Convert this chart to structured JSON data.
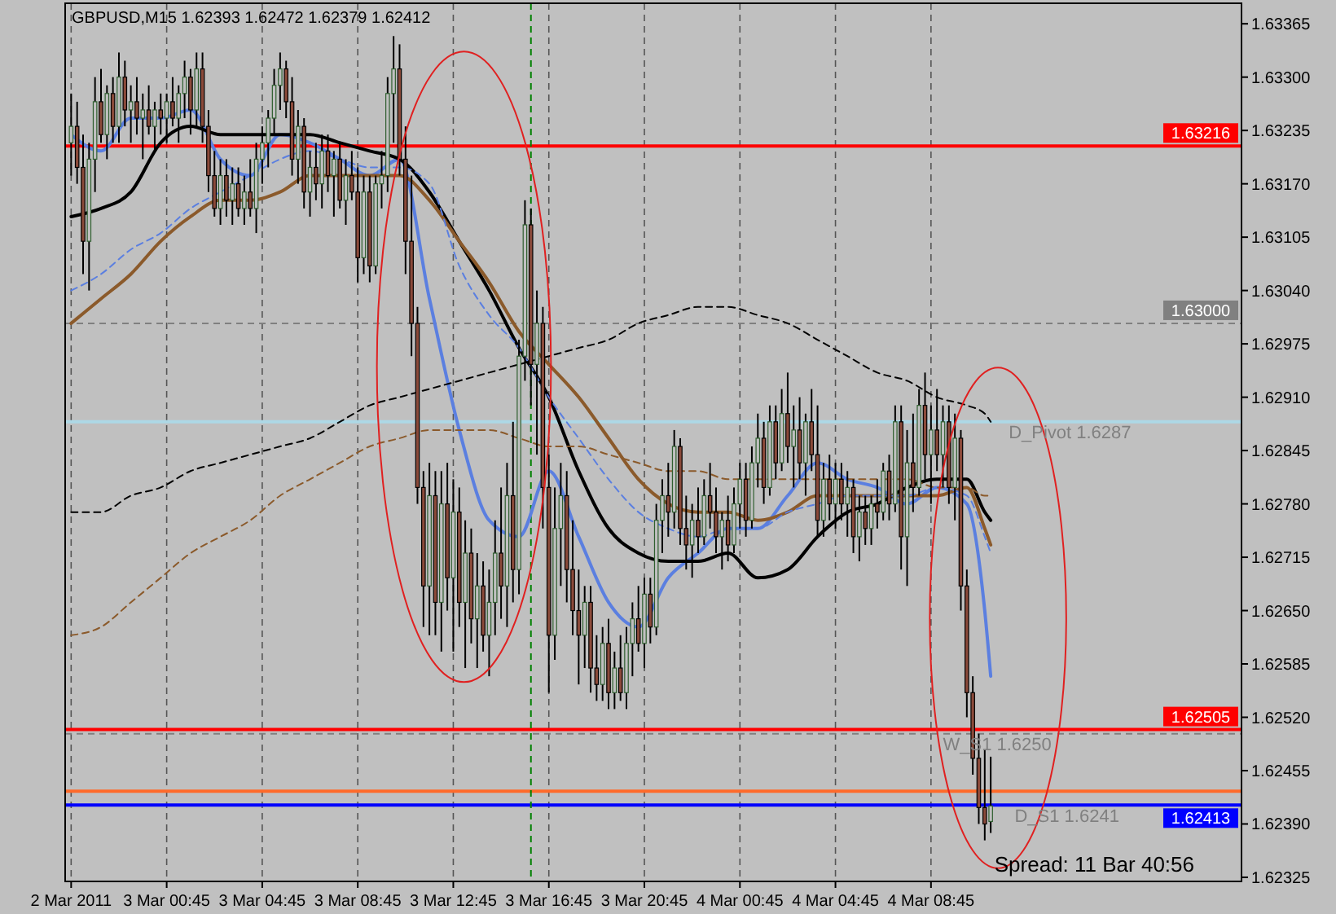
{
  "chart_data": {
    "type": "candlestick",
    "title": "GBPUSD,M15  1.62393 1.62472 1.62379 1.62412",
    "xlim": [
      "2011-03-02T20:30",
      "2011-03-04T21:45"
    ],
    "xticks": [
      {
        "value": "2011-03-02T20:45",
        "label": "2 Mar 2011"
      },
      {
        "value": "2011-03-03T00:45",
        "label": "3 Mar 00:45"
      },
      {
        "value": "2011-03-03T04:45",
        "label": "3 Mar 04:45"
      },
      {
        "value": "2011-03-03T08:45",
        "label": "3 Mar 08:45"
      },
      {
        "value": "2011-03-03T12:45",
        "label": "3 Mar 12:45"
      },
      {
        "value": "2011-03-03T16:45",
        "label": "3 Mar 16:45"
      },
      {
        "value": "2011-03-03T20:45",
        "label": "3 Mar 20:45"
      },
      {
        "value": "2011-03-04T00:45",
        "label": "4 Mar 00:45"
      },
      {
        "value": "2011-03-04T04:45",
        "label": "4 Mar 04:45"
      },
      {
        "value": "2011-03-04T08:45",
        "label": "4 Mar 08:45"
      }
    ],
    "ylim": [
      1.6232,
      1.6339
    ],
    "yticks": [
      {
        "value": 1.62325,
        "label": "1.62325"
      },
      {
        "value": 1.6239,
        "label": "1.62390"
      },
      {
        "value": 1.62455,
        "label": "1.62455"
      },
      {
        "value": 1.6252,
        "label": "1.62520"
      },
      {
        "value": 1.62585,
        "label": "1.62585"
      },
      {
        "value": 1.6265,
        "label": "1.62650"
      },
      {
        "value": 1.62715,
        "label": "1.62715"
      },
      {
        "value": 1.6278,
        "label": "1.62780"
      },
      {
        "value": 1.62845,
        "label": "1.62845"
      },
      {
        "value": 1.6291,
        "label": "1.62910"
      },
      {
        "value": 1.62975,
        "label": "1.62975"
      },
      {
        "value": 1.6304,
        "label": "1.63040"
      },
      {
        "value": 1.63105,
        "label": "1.63105"
      },
      {
        "value": 1.6317,
        "label": "1.63170"
      },
      {
        "value": 1.63235,
        "label": "1.63235"
      },
      {
        "value": 1.633,
        "label": "1.63300"
      },
      {
        "value": 1.63365,
        "label": "1.63365"
      }
    ],
    "grid": "x",
    "x": [
      "2011-03-02T20:45",
      "2011-03-02T21:00",
      "2011-03-02T21:15",
      "2011-03-02T21:30",
      "2011-03-02T21:45",
      "2011-03-02T22:00",
      "2011-03-02T22:15",
      "2011-03-02T22:30",
      "2011-03-02T22:45",
      "2011-03-02T23:00",
      "2011-03-02T23:15",
      "2011-03-02T23:30",
      "2011-03-02T23:45",
      "2011-03-03T00:00",
      "2011-03-03T00:15",
      "2011-03-03T00:30",
      "2011-03-03T00:45",
      "2011-03-03T01:00",
      "2011-03-03T01:15",
      "2011-03-03T01:30",
      "2011-03-03T01:45",
      "2011-03-03T02:00",
      "2011-03-03T02:15",
      "2011-03-03T02:30",
      "2011-03-03T02:45",
      "2011-03-03T03:00",
      "2011-03-03T03:15",
      "2011-03-03T03:30",
      "2011-03-03T03:45",
      "2011-03-03T04:00",
      "2011-03-03T04:15",
      "2011-03-03T04:30",
      "2011-03-03T04:45",
      "2011-03-03T05:00",
      "2011-03-03T05:15",
      "2011-03-03T05:30",
      "2011-03-03T05:45",
      "2011-03-03T06:00",
      "2011-03-03T06:15",
      "2011-03-03T06:30",
      "2011-03-03T06:45",
      "2011-03-03T07:00",
      "2011-03-03T07:15",
      "2011-03-03T07:30",
      "2011-03-03T07:45",
      "2011-03-03T08:00",
      "2011-03-03T08:15",
      "2011-03-03T08:30",
      "2011-03-03T08:45",
      "2011-03-03T09:00",
      "2011-03-03T09:15",
      "2011-03-03T09:30",
      "2011-03-03T09:45",
      "2011-03-03T10:00",
      "2011-03-03T10:15",
      "2011-03-03T10:30",
      "2011-03-03T10:45",
      "2011-03-03T11:00",
      "2011-03-03T11:15",
      "2011-03-03T11:30",
      "2011-03-03T11:45",
      "2011-03-03T12:00",
      "2011-03-03T12:15",
      "2011-03-03T12:30",
      "2011-03-03T12:45",
      "2011-03-03T13:00",
      "2011-03-03T13:15",
      "2011-03-03T13:30",
      "2011-03-03T13:45",
      "2011-03-03T14:00",
      "2011-03-03T14:15",
      "2011-03-03T14:30",
      "2011-03-03T14:45",
      "2011-03-03T15:00",
      "2011-03-03T15:15",
      "2011-03-03T15:30",
      "2011-03-03T15:45",
      "2011-03-03T16:00",
      "2011-03-03T16:15",
      "2011-03-03T16:30",
      "2011-03-03T16:45",
      "2011-03-03T17:00",
      "2011-03-03T17:15",
      "2011-03-03T17:30",
      "2011-03-03T17:45",
      "2011-03-03T18:00",
      "2011-03-03T18:15",
      "2011-03-03T18:30",
      "2011-03-03T18:45",
      "2011-03-03T19:00",
      "2011-03-03T19:15",
      "2011-03-03T19:30",
      "2011-03-03T19:45",
      "2011-03-03T20:00",
      "2011-03-03T20:15",
      "2011-03-03T20:30",
      "2011-03-03T20:45",
      "2011-03-03T21:00",
      "2011-03-03T21:15",
      "2011-03-03T21:30",
      "2011-03-03T21:45",
      "2011-03-03T22:00",
      "2011-03-03T22:15",
      "2011-03-03T22:30",
      "2011-03-03T22:45",
      "2011-03-03T23:00",
      "2011-03-03T23:15",
      "2011-03-03T23:30",
      "2011-03-03T23:45",
      "2011-03-04T00:00",
      "2011-03-04T00:15",
      "2011-03-04T00:30",
      "2011-03-04T00:45",
      "2011-03-04T01:00",
      "2011-03-04T01:15",
      "2011-03-04T01:30",
      "2011-03-04T01:45",
      "2011-03-04T02:00",
      "2011-03-04T02:15",
      "2011-03-04T02:30",
      "2011-03-04T02:45",
      "2011-03-04T03:00",
      "2011-03-04T03:15",
      "2011-03-04T03:30",
      "2011-03-04T03:45",
      "2011-03-04T04:00",
      "2011-03-04T04:15",
      "2011-03-04T04:30",
      "2011-03-04T04:45",
      "2011-03-04T05:00",
      "2011-03-04T05:15",
      "2011-03-04T05:30",
      "2011-03-04T05:45",
      "2011-03-04T06:00",
      "2011-03-04T06:15",
      "2011-03-04T06:30",
      "2011-03-04T06:45",
      "2011-03-04T07:00",
      "2011-03-04T07:15",
      "2011-03-04T07:30",
      "2011-03-04T07:45",
      "2011-03-04T08:00",
      "2011-03-04T08:15",
      "2011-03-04T08:30",
      "2011-03-04T08:45",
      "2011-03-04T09:00",
      "2011-03-04T09:15",
      "2011-03-04T09:30",
      "2011-03-04T09:45",
      "2011-03-04T10:00",
      "2011-03-04T10:15",
      "2011-03-04T10:30",
      "2011-03-04T10:45",
      "2011-03-04T11:00",
      "2011-03-04T11:15"
    ],
    "ohlc": [
      [
        1.6322,
        1.6328,
        1.6318,
        1.6324
      ],
      [
        1.6324,
        1.6327,
        1.6317,
        1.6319
      ],
      [
        1.6319,
        1.6323,
        1.6306,
        1.631
      ],
      [
        1.631,
        1.6322,
        1.6304,
        1.632
      ],
      [
        1.632,
        1.633,
        1.6316,
        1.6327
      ],
      [
        1.6327,
        1.6331,
        1.6322,
        1.6323
      ],
      [
        1.6323,
        1.6329,
        1.632,
        1.6328
      ],
      [
        1.6328,
        1.633,
        1.6322,
        1.6324
      ],
      [
        1.6324,
        1.6333,
        1.6322,
        1.633
      ],
      [
        1.633,
        1.6332,
        1.6324,
        1.6326
      ],
      [
        1.6326,
        1.6329,
        1.6322,
        1.6327
      ],
      [
        1.6327,
        1.633,
        1.6323,
        1.6325
      ],
      [
        1.6325,
        1.6328,
        1.632,
        1.6326
      ],
      [
        1.6326,
        1.6329,
        1.6323,
        1.6324
      ],
      [
        1.6324,
        1.6327,
        1.6321,
        1.6326
      ],
      [
        1.6326,
        1.6328,
        1.6323,
        1.6325
      ],
      [
        1.6325,
        1.6328,
        1.6322,
        1.6327
      ],
      [
        1.6327,
        1.633,
        1.6324,
        1.6325
      ],
      [
        1.6325,
        1.6329,
        1.6322,
        1.6328
      ],
      [
        1.6328,
        1.6332,
        1.6325,
        1.633
      ],
      [
        1.633,
        1.6331,
        1.6323,
        1.6326
      ],
      [
        1.6326,
        1.6333,
        1.6324,
        1.6331
      ],
      [
        1.6331,
        1.6333,
        1.6322,
        1.6324
      ],
      [
        1.6324,
        1.6326,
        1.6316,
        1.6318
      ],
      [
        1.6318,
        1.6321,
        1.6313,
        1.6314
      ],
      [
        1.6314,
        1.632,
        1.6312,
        1.6318
      ],
      [
        1.6318,
        1.632,
        1.6313,
        1.6315
      ],
      [
        1.6315,
        1.6319,
        1.6312,
        1.6317
      ],
      [
        1.6317,
        1.6319,
        1.6313,
        1.6314
      ],
      [
        1.6314,
        1.6318,
        1.6312,
        1.6316
      ],
      [
        1.6316,
        1.632,
        1.6313,
        1.6314
      ],
      [
        1.6314,
        1.6322,
        1.6311,
        1.632
      ],
      [
        1.632,
        1.6324,
        1.6317,
        1.6322
      ],
      [
        1.6322,
        1.6326,
        1.6319,
        1.6325
      ],
      [
        1.6325,
        1.6331,
        1.6323,
        1.6329
      ],
      [
        1.6329,
        1.6333,
        1.6326,
        1.6331
      ],
      [
        1.6331,
        1.6332,
        1.6325,
        1.6327
      ],
      [
        1.6327,
        1.633,
        1.6318,
        1.632
      ],
      [
        1.632,
        1.6326,
        1.6317,
        1.6324
      ],
      [
        1.6324,
        1.6325,
        1.6314,
        1.6316
      ],
      [
        1.6316,
        1.6321,
        1.6313,
        1.6319
      ],
      [
        1.6319,
        1.6322,
        1.6315,
        1.6317
      ],
      [
        1.6317,
        1.6323,
        1.6314,
        1.6321
      ],
      [
        1.6321,
        1.6323,
        1.6316,
        1.6318
      ],
      [
        1.6318,
        1.6321,
        1.6313,
        1.632
      ],
      [
        1.632,
        1.6322,
        1.6314,
        1.6315
      ],
      [
        1.6315,
        1.632,
        1.6312,
        1.6318
      ],
      [
        1.6318,
        1.6321,
        1.6315,
        1.6316
      ],
      [
        1.6316,
        1.6319,
        1.6305,
        1.6308
      ],
      [
        1.6308,
        1.6318,
        1.6306,
        1.6316
      ],
      [
        1.6316,
        1.6318,
        1.6305,
        1.6307
      ],
      [
        1.6307,
        1.6318,
        1.6306,
        1.6317
      ],
      [
        1.6317,
        1.6321,
        1.6314,
        1.6318
      ],
      [
        1.6318,
        1.633,
        1.6316,
        1.6328
      ],
      [
        1.6328,
        1.6335,
        1.6322,
        1.6331
      ],
      [
        1.6331,
        1.6334,
        1.6318,
        1.632
      ],
      [
        1.632,
        1.6324,
        1.6306,
        1.631
      ],
      [
        1.631,
        1.6318,
        1.6296,
        1.63
      ],
      [
        1.63,
        1.6302,
        1.6278,
        1.628
      ],
      [
        1.628,
        1.6282,
        1.6263,
        1.6268
      ],
      [
        1.6268,
        1.6283,
        1.6262,
        1.6279
      ],
      [
        1.6279,
        1.6282,
        1.6262,
        1.6266
      ],
      [
        1.6266,
        1.6282,
        1.626,
        1.6278
      ],
      [
        1.6278,
        1.6283,
        1.6265,
        1.6269
      ],
      [
        1.6269,
        1.6281,
        1.626,
        1.6277
      ],
      [
        1.6277,
        1.628,
        1.6263,
        1.6266
      ],
      [
        1.6266,
        1.6276,
        1.6258,
        1.6272
      ],
      [
        1.6272,
        1.6275,
        1.6261,
        1.6264
      ],
      [
        1.6264,
        1.6272,
        1.6258,
        1.6268
      ],
      [
        1.6268,
        1.6271,
        1.626,
        1.6262
      ],
      [
        1.6262,
        1.627,
        1.6257,
        1.6266
      ],
      [
        1.6266,
        1.6276,
        1.6262,
        1.6272
      ],
      [
        1.6272,
        1.628,
        1.6264,
        1.6268
      ],
      [
        1.6268,
        1.6283,
        1.6263,
        1.6279
      ],
      [
        1.6279,
        1.6288,
        1.6266,
        1.627
      ],
      [
        1.627,
        1.6298,
        1.6267,
        1.6296
      ],
      [
        1.6296,
        1.6315,
        1.6293,
        1.6312
      ],
      [
        1.6312,
        1.6314,
        1.629,
        1.6295
      ],
      [
        1.6295,
        1.6304,
        1.6284,
        1.63
      ],
      [
        1.63,
        1.6302,
        1.6275,
        1.628
      ],
      [
        1.628,
        1.6284,
        1.6255,
        1.6262
      ],
      [
        1.6262,
        1.628,
        1.6259,
        1.6275
      ],
      [
        1.6275,
        1.6283,
        1.6268,
        1.6279
      ],
      [
        1.6279,
        1.6282,
        1.6266,
        1.627
      ],
      [
        1.627,
        1.6276,
        1.6262,
        1.6265
      ],
      [
        1.6265,
        1.627,
        1.6256,
        1.6262
      ],
      [
        1.6262,
        1.6268,
        1.6258,
        1.6266
      ],
      [
        1.6266,
        1.6268,
        1.6255,
        1.6258
      ],
      [
        1.6258,
        1.6262,
        1.6254,
        1.6256
      ],
      [
        1.6256,
        1.6263,
        1.6254,
        1.6261
      ],
      [
        1.6261,
        1.6264,
        1.6253,
        1.6255
      ],
      [
        1.6255,
        1.626,
        1.6253,
        1.6258
      ],
      [
        1.6258,
        1.6262,
        1.6254,
        1.6255
      ],
      [
        1.6255,
        1.6263,
        1.6253,
        1.6261
      ],
      [
        1.6261,
        1.6266,
        1.6257,
        1.6264
      ],
      [
        1.6264,
        1.6268,
        1.626,
        1.6261
      ],
      [
        1.6261,
        1.6269,
        1.6258,
        1.6267
      ],
      [
        1.6267,
        1.6269,
        1.6261,
        1.6263
      ],
      [
        1.6263,
        1.6278,
        1.6262,
        1.6276
      ],
      [
        1.6276,
        1.6281,
        1.6272,
        1.6279
      ],
      [
        1.6279,
        1.6283,
        1.6274,
        1.6277
      ],
      [
        1.6277,
        1.6287,
        1.6275,
        1.6285
      ],
      [
        1.6285,
        1.6286,
        1.6273,
        1.6275
      ],
      [
        1.6275,
        1.6279,
        1.627,
        1.6273
      ],
      [
        1.6273,
        1.6278,
        1.6269,
        1.6276
      ],
      [
        1.6276,
        1.628,
        1.6272,
        1.6274
      ],
      [
        1.6274,
        1.6281,
        1.6273,
        1.6279
      ],
      [
        1.6279,
        1.6283,
        1.6275,
        1.6277
      ],
      [
        1.6277,
        1.628,
        1.6272,
        1.6274
      ],
      [
        1.6274,
        1.6277,
        1.627,
        1.6276
      ],
      [
        1.6276,
        1.6279,
        1.6271,
        1.6273
      ],
      [
        1.6273,
        1.628,
        1.6272,
        1.6278
      ],
      [
        1.6278,
        1.6283,
        1.6275,
        1.6281
      ],
      [
        1.6281,
        1.6283,
        1.6274,
        1.6276
      ],
      [
        1.6276,
        1.6285,
        1.6275,
        1.6283
      ],
      [
        1.6283,
        1.6289,
        1.628,
        1.6286
      ],
      [
        1.6286,
        1.6288,
        1.6278,
        1.628
      ],
      [
        1.628,
        1.629,
        1.6279,
        1.6288
      ],
      [
        1.6288,
        1.629,
        1.6281,
        1.6283
      ],
      [
        1.6283,
        1.6292,
        1.6282,
        1.6289
      ],
      [
        1.6289,
        1.6294,
        1.6283,
        1.6285
      ],
      [
        1.6285,
        1.629,
        1.628,
        1.6287
      ],
      [
        1.6287,
        1.6291,
        1.6281,
        1.6283
      ],
      [
        1.6283,
        1.6289,
        1.6279,
        1.6288
      ],
      [
        1.6288,
        1.6292,
        1.6282,
        1.6284
      ],
      [
        1.6284,
        1.629,
        1.6274,
        1.6276
      ],
      [
        1.6276,
        1.6283,
        1.6274,
        1.6281
      ],
      [
        1.6281,
        1.6284,
        1.6276,
        1.6278
      ],
      [
        1.6278,
        1.6283,
        1.6275,
        1.6281
      ],
      [
        1.6281,
        1.6283,
        1.6276,
        1.6278
      ],
      [
        1.6278,
        1.6282,
        1.6274,
        1.628
      ],
      [
        1.628,
        1.6281,
        1.6272,
        1.6274
      ],
      [
        1.6274,
        1.6279,
        1.6271,
        1.6277
      ],
      [
        1.6277,
        1.6279,
        1.6273,
        1.6275
      ],
      [
        1.6275,
        1.6279,
        1.6273,
        1.6278
      ],
      [
        1.6278,
        1.6281,
        1.6275,
        1.6277
      ],
      [
        1.6277,
        1.6283,
        1.6276,
        1.6282
      ],
      [
        1.6282,
        1.6284,
        1.6276,
        1.6278
      ],
      [
        1.6278,
        1.629,
        1.6277,
        1.6288
      ],
      [
        1.6288,
        1.629,
        1.627,
        1.6274
      ],
      [
        1.6274,
        1.6287,
        1.6268,
        1.6283
      ],
      [
        1.6283,
        1.6289,
        1.6277,
        1.628
      ],
      [
        1.628,
        1.6292,
        1.6279,
        1.629
      ],
      [
        1.629,
        1.6294,
        1.6281,
        1.6284
      ],
      [
        1.6284,
        1.629,
        1.6278,
        1.6287
      ],
      [
        1.6287,
        1.6292,
        1.6282,
        1.6284
      ],
      [
        1.6284,
        1.629,
        1.628,
        1.6288
      ],
      [
        1.6288,
        1.629,
        1.6278,
        1.628
      ],
      [
        1.628,
        1.6289,
        1.6276,
        1.6286
      ],
      [
        1.6286,
        1.6287,
        1.6265,
        1.6268
      ],
      [
        1.6268,
        1.627,
        1.6252,
        1.6255
      ],
      [
        1.6255,
        1.6257,
        1.6245,
        1.6247
      ],
      [
        1.6247,
        1.625,
        1.6239,
        1.6241
      ],
      [
        1.6241,
        1.6248,
        1.6237,
        1.6239
      ],
      [
        1.62393,
        1.62472,
        1.62379,
        1.62412
      ]
    ],
    "series": [
      {
        "type": "line",
        "color": "#5b7fe0",
        "x": [
          "2011-03-02T20:45",
          "2011-03-02T22:00",
          "2011-03-02T23:15",
          "2011-03-03T00:30",
          "2011-03-03T01:45",
          "2011-03-03T03:00",
          "2011-03-03T04:15",
          "2011-03-03T05:30",
          "2011-03-03T06:45",
          "2011-03-03T08:00",
          "2011-03-03T09:15",
          "2011-03-03T10:30",
          "2011-03-03T11:45",
          "2011-03-03T13:00",
          "2011-03-03T14:15",
          "2011-03-03T15:30",
          "2011-03-03T16:45",
          "2011-03-03T18:00",
          "2011-03-03T19:15",
          "2011-03-03T20:30",
          "2011-03-03T21:45",
          "2011-03-03T23:00",
          "2011-03-04T00:15",
          "2011-03-04T01:30",
          "2011-03-04T02:45",
          "2011-03-04T04:00",
          "2011-03-04T05:15",
          "2011-03-04T06:30",
          "2011-03-04T07:45",
          "2011-03-04T09:00",
          "2011-03-04T10:15",
          "2011-03-04T11:00",
          "2011-03-04T11:15"
        ],
        "values": [
          1.6323,
          1.6321,
          1.6325,
          1.6325,
          1.6326,
          1.632,
          1.6318,
          1.6323,
          1.6322,
          1.632,
          1.6318,
          1.632,
          1.6303,
          1.6287,
          1.6276,
          1.6274,
          1.6282,
          1.6274,
          1.6266,
          1.6263,
          1.6269,
          1.6272,
          1.6275,
          1.6275,
          1.6279,
          1.6283,
          1.6281,
          1.628,
          1.6278,
          1.628,
          1.6278,
          1.6265,
          1.6257
        ]
      },
      {
        "type": "line",
        "color": "#000000",
        "x": [
          "2011-03-02T20:45",
          "2011-03-02T22:00",
          "2011-03-02T23:15",
          "2011-03-03T00:30",
          "2011-03-03T01:45",
          "2011-03-03T03:00",
          "2011-03-03T04:15",
          "2011-03-03T05:30",
          "2011-03-03T06:45",
          "2011-03-03T08:00",
          "2011-03-03T09:15",
          "2011-03-03T10:30",
          "2011-03-03T11:45",
          "2011-03-03T13:00",
          "2011-03-03T14:15",
          "2011-03-03T15:30",
          "2011-03-03T16:45",
          "2011-03-03T18:00",
          "2011-03-03T19:15",
          "2011-03-03T20:30",
          "2011-03-03T21:45",
          "2011-03-03T23:00",
          "2011-03-04T00:15",
          "2011-03-04T01:30",
          "2011-03-04T02:45",
          "2011-03-04T04:00",
          "2011-03-04T05:15",
          "2011-03-04T06:30",
          "2011-03-04T07:45",
          "2011-03-04T09:00",
          "2011-03-04T10:15",
          "2011-03-04T11:00",
          "2011-03-04T11:15"
        ],
        "values": [
          1.6313,
          1.6314,
          1.6316,
          1.6322,
          1.6324,
          1.6323,
          1.6323,
          1.6323,
          1.6323,
          1.6322,
          1.6321,
          1.632,
          1.6316,
          1.631,
          1.6304,
          1.6297,
          1.6291,
          1.6282,
          1.6275,
          1.6272,
          1.6271,
          1.6271,
          1.6272,
          1.6269,
          1.627,
          1.6274,
          1.6277,
          1.6278,
          1.628,
          1.6281,
          1.6281,
          1.6277,
          1.6276
        ]
      },
      {
        "type": "line",
        "color": "#8b5a2b",
        "x": [
          "2011-03-02T20:45",
          "2011-03-02T22:00",
          "2011-03-02T23:15",
          "2011-03-03T00:30",
          "2011-03-03T01:45",
          "2011-03-03T03:00",
          "2011-03-03T04:15",
          "2011-03-03T05:30",
          "2011-03-03T06:45",
          "2011-03-03T08:00",
          "2011-03-03T09:15",
          "2011-03-03T10:30",
          "2011-03-03T11:45",
          "2011-03-03T13:00",
          "2011-03-03T14:15",
          "2011-03-03T15:30",
          "2011-03-03T16:45",
          "2011-03-03T18:00",
          "2011-03-03T19:15",
          "2011-03-03T20:30",
          "2011-03-03T21:45",
          "2011-03-03T23:00",
          "2011-03-04T00:15",
          "2011-03-04T01:30",
          "2011-03-04T02:45",
          "2011-03-04T04:00",
          "2011-03-04T05:15",
          "2011-03-04T06:30",
          "2011-03-04T07:45",
          "2011-03-04T09:00",
          "2011-03-04T10:15",
          "2011-03-04T11:00",
          "2011-03-04T11:15"
        ],
        "values": [
          1.63,
          1.6303,
          1.6306,
          1.631,
          1.6313,
          1.6315,
          1.6315,
          1.6316,
          1.6318,
          1.6318,
          1.6318,
          1.6318,
          1.6315,
          1.631,
          1.6305,
          1.6299,
          1.6295,
          1.6291,
          1.6286,
          1.6281,
          1.6278,
          1.6277,
          1.6277,
          1.6276,
          1.6277,
          1.6279,
          1.6279,
          1.6279,
          1.6279,
          1.6279,
          1.628,
          1.6275,
          1.6273
        ]
      },
      {
        "type": "line",
        "color": "#5b7fe0",
        "line_style": "dashed",
        "x": [
          "2011-03-02T20:45",
          "2011-03-02T22:00",
          "2011-03-02T23:15",
          "2011-03-03T00:30",
          "2011-03-03T01:45",
          "2011-03-03T03:00",
          "2011-03-03T04:15",
          "2011-03-03T05:30",
          "2011-03-03T06:45",
          "2011-03-03T08:00",
          "2011-03-03T09:15",
          "2011-03-03T10:30",
          "2011-03-03T11:45",
          "2011-03-03T13:00",
          "2011-03-03T14:15",
          "2011-03-03T15:30",
          "2011-03-03T16:45",
          "2011-03-03T18:00",
          "2011-03-03T19:15",
          "2011-03-03T20:30",
          "2011-03-03T21:45",
          "2011-03-03T23:00",
          "2011-03-04T00:15",
          "2011-03-04T01:30",
          "2011-03-04T02:45",
          "2011-03-04T04:00",
          "2011-03-04T05:15",
          "2011-03-04T06:30",
          "2011-03-04T07:45",
          "2011-03-04T09:00",
          "2011-03-04T10:15",
          "2011-03-04T11:00",
          "2011-03-04T11:15"
        ],
        "values": [
          1.6304,
          1.6306,
          1.6309,
          1.6311,
          1.6314,
          1.6316,
          1.6318,
          1.632,
          1.6321,
          1.632,
          1.6319,
          1.6319,
          1.6317,
          1.6307,
          1.6301,
          1.6297,
          1.6291,
          1.6286,
          1.6281,
          1.6277,
          1.6275,
          1.6274,
          1.6275,
          1.6275,
          1.6277,
          1.6278,
          1.6279,
          1.6279,
          1.6279,
          1.628,
          1.6279,
          1.6274,
          1.6272
        ]
      },
      {
        "type": "line",
        "color": "#000000",
        "line_style": "dashed",
        "x": [
          "2011-03-02T20:45",
          "2011-03-02T22:00",
          "2011-03-02T23:15",
          "2011-03-03T00:30",
          "2011-03-03T01:45",
          "2011-03-03T03:00",
          "2011-03-03T04:15",
          "2011-03-03T05:30",
          "2011-03-03T06:45",
          "2011-03-03T08:00",
          "2011-03-03T09:15",
          "2011-03-03T10:30",
          "2011-03-03T11:45",
          "2011-03-03T13:00",
          "2011-03-03T14:15",
          "2011-03-03T15:30",
          "2011-03-03T16:45",
          "2011-03-03T18:00",
          "2011-03-03T19:15",
          "2011-03-03T20:30",
          "2011-03-03T21:45",
          "2011-03-03T23:00",
          "2011-03-04T00:15",
          "2011-03-04T01:30",
          "2011-03-04T02:45",
          "2011-03-04T04:00",
          "2011-03-04T05:15",
          "2011-03-04T06:30",
          "2011-03-04T07:45",
          "2011-03-04T09:00",
          "2011-03-04T10:15",
          "2011-03-04T11:00",
          "2011-03-04T11:15"
        ],
        "values": [
          1.6277,
          1.6277,
          1.6279,
          1.628,
          1.6282,
          1.6283,
          1.6284,
          1.6285,
          1.6286,
          1.6288,
          1.629,
          1.6291,
          1.6292,
          1.6293,
          1.6294,
          1.6295,
          1.6296,
          1.6297,
          1.6298,
          1.63,
          1.6301,
          1.6302,
          1.6302,
          1.6301,
          1.63,
          1.6298,
          1.6296,
          1.6294,
          1.6293,
          1.6291,
          1.629,
          1.6289,
          1.6288
        ]
      },
      {
        "type": "line",
        "color": "#8b5a2b",
        "line_style": "dashed",
        "x": [
          "2011-03-02T20:45",
          "2011-03-02T22:00",
          "2011-03-02T23:15",
          "2011-03-03T00:30",
          "2011-03-03T01:45",
          "2011-03-03T03:00",
          "2011-03-03T04:15",
          "2011-03-03T05:30",
          "2011-03-03T06:45",
          "2011-03-03T08:00",
          "2011-03-03T09:15",
          "2011-03-03T10:30",
          "2011-03-03T11:45",
          "2011-03-03T13:00",
          "2011-03-03T14:15",
          "2011-03-03T15:30",
          "2011-03-03T16:45",
          "2011-03-03T18:00",
          "2011-03-03T19:15",
          "2011-03-03T20:30",
          "2011-03-03T21:45",
          "2011-03-03T23:00",
          "2011-03-04T00:15",
          "2011-03-04T01:30",
          "2011-03-04T02:45",
          "2011-03-04T04:00",
          "2011-03-04T05:15",
          "2011-03-04T06:30",
          "2011-03-04T07:45",
          "2011-03-04T09:00",
          "2011-03-04T10:15",
          "2011-03-04T11:00",
          "2011-03-04T11:15"
        ],
        "values": [
          1.6262,
          1.6263,
          1.6266,
          1.6269,
          1.6272,
          1.6274,
          1.6276,
          1.6279,
          1.6281,
          1.6283,
          1.6285,
          1.6286,
          1.6287,
          1.6287,
          1.6287,
          1.6286,
          1.6285,
          1.6285,
          1.6284,
          1.6283,
          1.6282,
          1.6282,
          1.6281,
          1.6281,
          1.6281,
          1.6281,
          1.6281,
          1.6281,
          1.6281,
          1.628,
          1.628,
          1.6279,
          1.6279
        ]
      }
    ],
    "ref_lines": [
      {
        "axis": "y",
        "value": 1.63216,
        "label": "1.63216",
        "color": "#ff0000"
      },
      {
        "axis": "y",
        "value": 1.63,
        "label": "1.63000",
        "color": "#808080",
        "line_style": "dashed"
      },
      {
        "axis": "y",
        "value": 1.6288,
        "label": null,
        "color": "#add8e6"
      },
      {
        "axis": "y",
        "value": 1.62505,
        "label": "1.62505",
        "color": "#ff0000"
      },
      {
        "axis": "y",
        "value": 1.625,
        "label": null,
        "color": "#808080",
        "line_style": "dashed"
      },
      {
        "axis": "y",
        "value": 1.6243,
        "label": null,
        "color": "#ff6a2a"
      },
      {
        "axis": "y",
        "value": 1.62413,
        "label": "1.62413",
        "color": "#0000ff"
      },
      {
        "axis": "x",
        "value": "2011-03-03T16:00",
        "label": null,
        "color": "#008000",
        "line_style": "dashed"
      }
    ],
    "annotations": [
      {
        "text": "D_Pivot 1.6287",
        "x": "2011-03-04T12:00",
        "y": 1.6288
      },
      {
        "text": "W_S1 1.6250",
        "x": "2011-03-04T09:15",
        "y": 1.625
      },
      {
        "text": "D_S1 1.6241",
        "x": "2011-03-04T12:15",
        "y": 1.62413
      },
      "Spread: 11    Bar  40:56"
    ]
  }
}
